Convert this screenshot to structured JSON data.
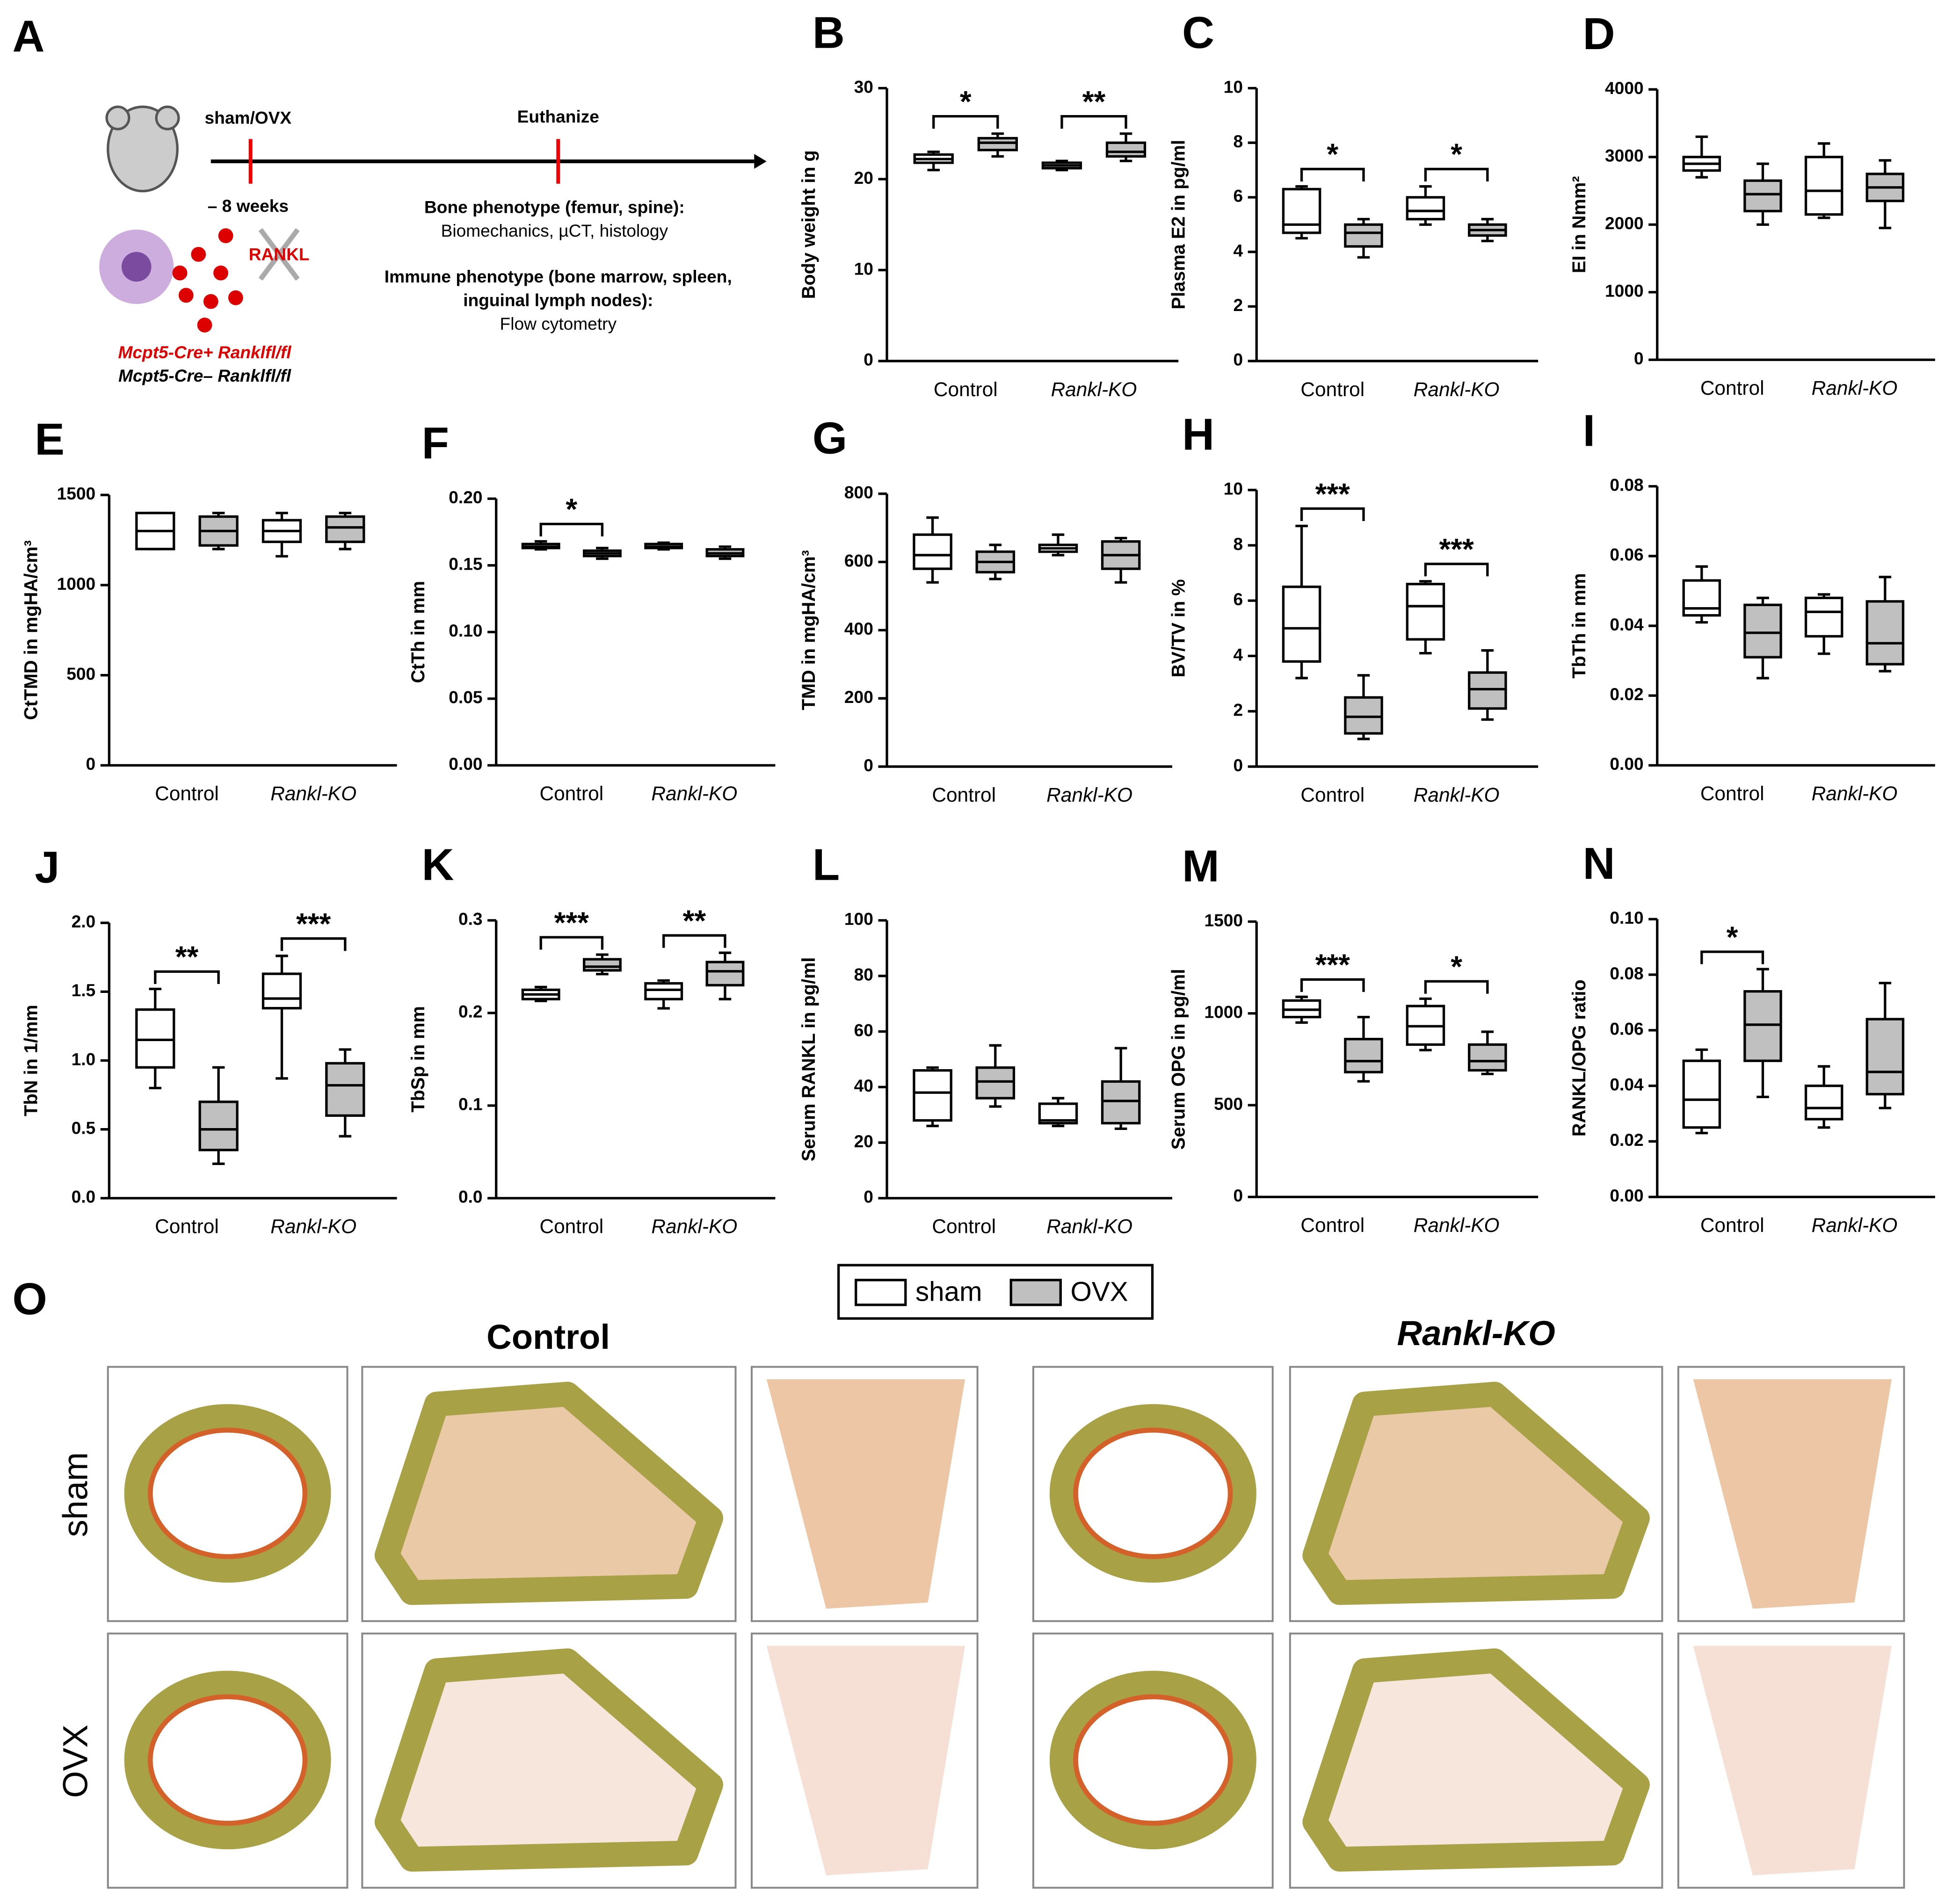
{
  "figure": {
    "panelA": {
      "letter": "A",
      "shamovx": "sham/OVX",
      "weeks": "– 8 weeks",
      "euthanize": "Euthanize",
      "bone1": "Bone phenotype (femur, spine):",
      "bone2": "Biomechanics, µCT, histology",
      "immune1": "Immune phenotype (bone marrow, spleen,",
      "immune2": "inguinal lymph nodes):",
      "immune3": "Flow cytometry",
      "rankl": "RANKL",
      "geno1": "Mcpt5-Cre+ Ranklfl/fl",
      "geno2": "Mcpt5-Cre– Ranklfl/fl"
    },
    "panelO": {
      "letter": "O",
      "col1": "Control",
      "col2": "Rankl-KO",
      "row1": "sham",
      "row2": "OVX"
    }
  },
  "chart_data": [
    {
      "type": "box",
      "panel": "B",
      "ylabel": "Body weight in g",
      "ylim": [
        0,
        30
      ],
      "yticks": [
        0,
        10,
        20,
        30
      ],
      "categories": [
        "Control",
        "Rankl-KO"
      ],
      "series": [
        {
          "name": "sham",
          "color": "#ffffff",
          "values": [
            [
              21,
              21.8,
              22.2,
              22.7,
              23
            ],
            [
              21,
              21.2,
              21.5,
              21.8,
              22
            ]
          ]
        },
        {
          "name": "OVX",
          "color": "#c0c0c0",
          "values": [
            [
              22.5,
              23.2,
              24,
              24.5,
              25
            ],
            [
              22,
              22.5,
              23,
              24,
              25
            ]
          ]
        }
      ],
      "annotations": [
        {
          "category": 0,
          "label": "*"
        },
        {
          "category": 1,
          "label": "**"
        }
      ]
    },
    {
      "type": "box",
      "panel": "C",
      "ylabel": "Plasma E2 in pg/ml",
      "ylim": [
        0,
        10
      ],
      "yticks": [
        0,
        2,
        4,
        6,
        8,
        10
      ],
      "categories": [
        "Control",
        "Rankl-KO"
      ],
      "series": [
        {
          "name": "sham",
          "color": "#ffffff",
          "values": [
            [
              4.5,
              4.7,
              5,
              6.3,
              6.4
            ],
            [
              5,
              5.2,
              5.5,
              6,
              6.4
            ]
          ]
        },
        {
          "name": "OVX",
          "color": "#c0c0c0",
          "values": [
            [
              3.8,
              4.2,
              4.7,
              5,
              5.2
            ],
            [
              4.4,
              4.6,
              4.8,
              5,
              5.2
            ]
          ]
        }
      ],
      "annotations": [
        {
          "category": 0,
          "label": "*"
        },
        {
          "category": 1,
          "label": "*"
        }
      ]
    },
    {
      "type": "box",
      "panel": "D",
      "ylabel": "EI in Nmm²",
      "ylim": [
        0,
        4000
      ],
      "yticks": [
        0,
        1000,
        2000,
        3000,
        4000
      ],
      "categories": [
        "Control",
        "Rankl-KO"
      ],
      "series": [
        {
          "name": "sham",
          "color": "#ffffff",
          "values": [
            [
              2700,
              2800,
              2900,
              3000,
              3300
            ],
            [
              2100,
              2150,
              2500,
              3000,
              3200
            ]
          ]
        },
        {
          "name": "OVX",
          "color": "#c0c0c0",
          "values": [
            [
              2000,
              2200,
              2450,
              2650,
              2900
            ],
            [
              1950,
              2350,
              2550,
              2750,
              2950
            ]
          ]
        }
      ],
      "annotations": []
    },
    {
      "type": "box",
      "panel": "E",
      "ylabel": "CtTMD in mgHA/cm³",
      "ylim": [
        0,
        1500
      ],
      "yticks": [
        0,
        500,
        1000,
        1500
      ],
      "categories": [
        "Control",
        "Rankl-KO"
      ],
      "series": [
        {
          "name": "sham",
          "color": "#ffffff",
          "values": [
            [
              1200,
              1200,
              1300,
              1400,
              1400
            ],
            [
              1160,
              1240,
              1300,
              1360,
              1400
            ]
          ]
        },
        {
          "name": "OVX",
          "color": "#c0c0c0",
          "values": [
            [
              1200,
              1220,
              1300,
              1380,
              1400
            ],
            [
              1200,
              1240,
              1320,
              1380,
              1400
            ]
          ]
        }
      ],
      "annotations": []
    },
    {
      "type": "box",
      "panel": "F",
      "ylabel": "CtTh in mm",
      "ylim": [
        0,
        0.2
      ],
      "yticks": [
        {
          "value": 0,
          "label": "0.00"
        },
        0.05,
        {
          "value": 0.1,
          "label": "0.10"
        },
        0.15,
        {
          "value": 0.2,
          "label": "0.20"
        }
      ],
      "categories": [
        "Control",
        "Rankl-KO"
      ],
      "series": [
        {
          "name": "sham",
          "color": "#ffffff",
          "values": [
            [
              0.162,
              0.163,
              0.164,
              0.166,
              0.168
            ],
            [
              0.162,
              0.163,
              0.164,
              0.166,
              0.167
            ]
          ]
        },
        {
          "name": "OVX",
          "color": "#c0c0c0",
          "values": [
            [
              0.155,
              0.157,
              0.159,
              0.161,
              0.163
            ],
            [
              0.155,
              0.157,
              0.159,
              0.162,
              0.164
            ]
          ]
        }
      ],
      "annotations": [
        {
          "category": 0,
          "label": "*"
        }
      ]
    },
    {
      "type": "box",
      "panel": "G",
      "ylabel": "TMD in mgHA/cm³",
      "ylim": [
        0,
        800
      ],
      "yticks": [
        0,
        200,
        400,
        600,
        800
      ],
      "categories": [
        "Control",
        "Rankl-KO"
      ],
      "series": [
        {
          "name": "sham",
          "color": "#ffffff",
          "values": [
            [
              540,
              580,
              620,
              680,
              730
            ],
            [
              620,
              630,
              640,
              650,
              680
            ]
          ]
        },
        {
          "name": "OVX",
          "color": "#c0c0c0",
          "values": [
            [
              550,
              570,
              600,
              630,
              650
            ],
            [
              540,
              580,
              620,
              660,
              670
            ]
          ]
        }
      ],
      "annotations": []
    },
    {
      "type": "box",
      "panel": "H",
      "ylabel": "BV/TV in %",
      "ylim": [
        0,
        10
      ],
      "yticks": [
        0,
        2,
        4,
        6,
        8,
        10
      ],
      "categories": [
        "Control",
        "Rankl-KO"
      ],
      "series": [
        {
          "name": "sham",
          "color": "#ffffff",
          "values": [
            [
              3.2,
              3.8,
              5,
              6.5,
              8.7
            ],
            [
              4.1,
              4.6,
              5.8,
              6.6,
              6.7
            ]
          ]
        },
        {
          "name": "OVX",
          "color": "#c0c0c0",
          "values": [
            [
              1,
              1.2,
              1.8,
              2.5,
              3.3
            ],
            [
              1.7,
              2.1,
              2.8,
              3.4,
              4.2
            ]
          ]
        }
      ],
      "annotations": [
        {
          "category": 0,
          "label": "***"
        },
        {
          "category": 1,
          "label": "***"
        }
      ]
    },
    {
      "type": "box",
      "panel": "I",
      "ylabel": "TbTh in mm",
      "ylim": [
        0,
        0.08
      ],
      "yticks": [
        {
          "value": 0,
          "label": "0.00"
        },
        0.02,
        0.04,
        0.06,
        0.08
      ],
      "categories": [
        "Control",
        "Rankl-KO"
      ],
      "series": [
        {
          "name": "sham",
          "color": "#ffffff",
          "values": [
            [
              0.041,
              0.043,
              0.045,
              0.053,
              0.057
            ],
            [
              0.032,
              0.037,
              0.044,
              0.048,
              0.049
            ]
          ]
        },
        {
          "name": "OVX",
          "color": "#c0c0c0",
          "values": [
            [
              0.025,
              0.031,
              0.038,
              0.046,
              0.048
            ],
            [
              0.027,
              0.029,
              0.035,
              0.047,
              0.054
            ]
          ]
        }
      ],
      "annotations": []
    },
    {
      "type": "box",
      "panel": "J",
      "ylabel": "TbN in 1/mm",
      "ylim": [
        0,
        2
      ],
      "yticks": [
        {
          "value": 0,
          "label": "0.0"
        },
        0.5,
        {
          "value": 1,
          "label": "1.0"
        },
        1.5,
        {
          "value": 2,
          "label": "2.0"
        }
      ],
      "categories": [
        "Control",
        "Rankl-KO"
      ],
      "series": [
        {
          "name": "sham",
          "color": "#ffffff",
          "values": [
            [
              0.8,
              0.95,
              1.15,
              1.37,
              1.52
            ],
            [
              0.87,
              1.38,
              1.45,
              1.63,
              1.76
            ]
          ]
        },
        {
          "name": "OVX",
          "color": "#c0c0c0",
          "values": [
            [
              0.25,
              0.35,
              0.5,
              0.7,
              0.95
            ],
            [
              0.45,
              0.6,
              0.82,
              0.98,
              1.08
            ]
          ]
        }
      ],
      "annotations": [
        {
          "category": 0,
          "label": "**"
        },
        {
          "category": 1,
          "label": "***"
        }
      ]
    },
    {
      "type": "box",
      "panel": "K",
      "ylabel": "TbSp in mm",
      "ylim": [
        0,
        0.3
      ],
      "yticks": [
        {
          "value": 0,
          "label": "0.0"
        },
        0.1,
        0.2,
        0.3
      ],
      "categories": [
        "Control",
        "Rankl-KO"
      ],
      "series": [
        {
          "name": "sham",
          "color": "#ffffff",
          "values": [
            [
              0.213,
              0.215,
              0.22,
              0.225,
              0.228
            ],
            [
              0.205,
              0.215,
              0.225,
              0.232,
              0.235
            ]
          ]
        },
        {
          "name": "OVX",
          "color": "#c0c0c0",
          "values": [
            [
              0.242,
              0.246,
              0.25,
              0.258,
              0.263
            ],
            [
              0.215,
              0.23,
              0.245,
              0.255,
              0.265
            ]
          ]
        }
      ],
      "annotations": [
        {
          "category": 0,
          "label": "***"
        },
        {
          "category": 1,
          "label": "**"
        }
      ]
    },
    {
      "type": "box",
      "panel": "L",
      "ylabel": "Serum RANKL in pg/ml",
      "ylim": [
        0,
        100
      ],
      "yticks": [
        0,
        20,
        40,
        60,
        80,
        100
      ],
      "categories": [
        "Control",
        "Rankl-KO"
      ],
      "series": [
        {
          "name": "sham",
          "color": "#ffffff",
          "values": [
            [
              26,
              28,
              38,
              46,
              47
            ],
            [
              26,
              27,
              28,
              34,
              36
            ]
          ]
        },
        {
          "name": "OVX",
          "color": "#c0c0c0",
          "values": [
            [
              33,
              36,
              42,
              47,
              55
            ],
            [
              25,
              27,
              35,
              42,
              54
            ]
          ]
        }
      ],
      "annotations": []
    },
    {
      "type": "box",
      "panel": "M",
      "ylabel": "Serum OPG in pg/ml",
      "ylim": [
        0,
        1500
      ],
      "yticks": [
        0,
        500,
        1000,
        1500
      ],
      "categories": [
        "Control",
        "Rankl-KO"
      ],
      "series": [
        {
          "name": "sham",
          "color": "#ffffff",
          "values": [
            [
              950,
              980,
              1020,
              1070,
              1090
            ],
            [
              800,
              830,
              930,
              1040,
              1080
            ]
          ]
        },
        {
          "name": "OVX",
          "color": "#c0c0c0",
          "values": [
            [
              630,
              680,
              740,
              860,
              980
            ],
            [
              670,
              690,
              740,
              830,
              900
            ]
          ]
        }
      ],
      "annotations": [
        {
          "category": 0,
          "label": "***"
        },
        {
          "category": 1,
          "label": "*"
        }
      ]
    },
    {
      "type": "box",
      "panel": "N",
      "ylabel": "RANKL/OPG ratio",
      "ylim": [
        0,
        0.1
      ],
      "yticks": [
        {
          "value": 0,
          "label": "0.00"
        },
        0.02,
        0.04,
        0.06,
        0.08,
        {
          "value": 0.1,
          "label": "0.10"
        }
      ],
      "categories": [
        "Control",
        "Rankl-KO"
      ],
      "series": [
        {
          "name": "sham",
          "color": "#ffffff",
          "values": [
            [
              0.023,
              0.025,
              0.035,
              0.049,
              0.053
            ],
            [
              0.025,
              0.028,
              0.032,
              0.04,
              0.047
            ]
          ]
        },
        {
          "name": "OVX",
          "color": "#c0c0c0",
          "values": [
            [
              0.036,
              0.049,
              0.062,
              0.074,
              0.082
            ],
            [
              0.032,
              0.037,
              0.045,
              0.064,
              0.077
            ]
          ]
        }
      ],
      "annotations": [
        {
          "category": 0,
          "label": "*"
        }
      ]
    }
  ]
}
